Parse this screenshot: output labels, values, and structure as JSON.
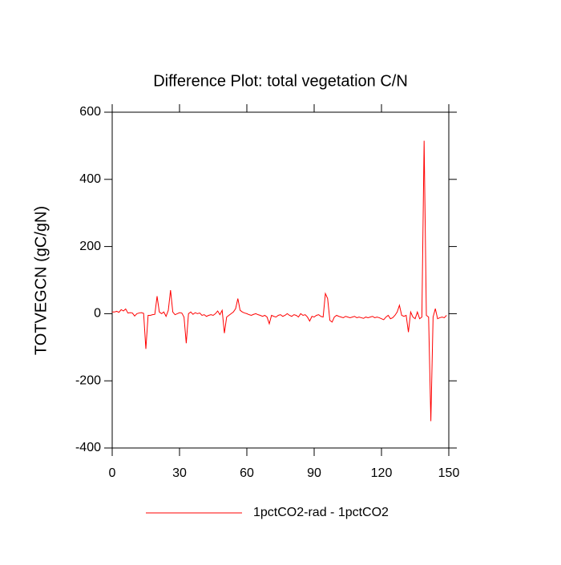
{
  "chart_data": {
    "type": "line",
    "title": "Difference Plot: total vegetation C/N",
    "y_label": "TOTVEGCN  (gC/gN)",
    "xlim": [
      0,
      150
    ],
    "xticks": [
      0,
      30,
      60,
      90,
      120,
      150
    ],
    "ylim": [
      -400,
      600
    ],
    "yticks": [
      -400,
      -200,
      0,
      200,
      400,
      600
    ],
    "x": [
      0,
      1,
      2,
      3,
      4,
      5,
      6,
      7,
      8,
      9,
      10,
      11,
      12,
      13,
      14,
      15,
      16,
      17,
      18,
      19,
      20,
      21,
      22,
      23,
      24,
      25,
      26,
      27,
      28,
      29,
      30,
      31,
      32,
      33,
      34,
      35,
      36,
      37,
      38,
      39,
      40,
      41,
      42,
      43,
      44,
      45,
      46,
      47,
      48,
      49,
      50,
      51,
      52,
      53,
      54,
      55,
      56,
      57,
      58,
      59,
      60,
      61,
      62,
      63,
      64,
      65,
      66,
      67,
      68,
      69,
      70,
      71,
      72,
      73,
      74,
      75,
      76,
      77,
      78,
      79,
      80,
      81,
      82,
      83,
      84,
      85,
      86,
      87,
      88,
      89,
      90,
      91,
      92,
      93,
      94,
      95,
      96,
      97,
      98,
      99,
      100,
      101,
      102,
      103,
      104,
      105,
      106,
      107,
      108,
      109,
      110,
      111,
      112,
      113,
      114,
      115,
      116,
      117,
      118,
      119,
      120,
      121,
      122,
      123,
      124,
      125,
      126,
      127,
      128,
      129,
      130,
      131,
      132,
      133,
      134,
      135,
      136,
      137,
      138,
      139,
      140,
      141,
      142,
      143,
      144,
      145,
      146,
      147,
      148,
      149
    ],
    "series": [
      {
        "name": "1pctCO2-rad - 1pctCO2",
        "color": "#ff0000",
        "values": [
          5,
          5,
          7,
          4,
          12,
          8,
          14,
          2,
          3,
          2,
          -7,
          0,
          2,
          3,
          1,
          -105,
          -5,
          -5,
          -3,
          -2,
          52,
          5,
          0,
          5,
          -8,
          10,
          70,
          5,
          -3,
          0,
          3,
          2,
          -10,
          -88,
          0,
          5,
          -2,
          3,
          0,
          2,
          -5,
          -3,
          -8,
          -5,
          -3,
          -5,
          0,
          8,
          -3,
          10,
          -58,
          -10,
          -5,
          0,
          5,
          15,
          45,
          10,
          5,
          2,
          0,
          -3,
          -5,
          -2,
          0,
          -3,
          -5,
          -8,
          -5,
          -10,
          -30,
          -5,
          -8,
          -10,
          -5,
          -3,
          -8,
          -5,
          0,
          -5,
          -8,
          -3,
          -5,
          -10,
          0,
          -5,
          -3,
          -10,
          -22,
          -8,
          -10,
          -5,
          -3,
          -8,
          -10,
          60,
          45,
          -20,
          -25,
          -10,
          -5,
          -8,
          -10,
          -12,
          -8,
          -10,
          -12,
          -10,
          -8,
          -12,
          -10,
          -12,
          -14,
          -10,
          -12,
          -10,
          -8,
          -12,
          -10,
          -12,
          -15,
          -18,
          -10,
          -5,
          -15,
          -12,
          -5,
          5,
          25,
          -5,
          -8,
          -5,
          -55,
          5,
          -10,
          -15,
          5,
          -15,
          -10,
          515,
          -5,
          -10,
          -320,
          -10,
          15,
          -15,
          -12,
          -10,
          -12,
          -5
        ]
      }
    ]
  }
}
